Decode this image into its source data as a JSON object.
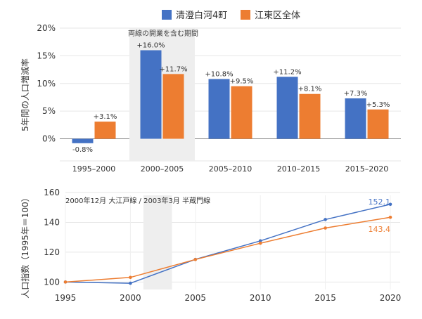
{
  "legend": [
    {
      "label": "清澄白河4町",
      "color": "#4472C4"
    },
    {
      "label": "江東区全体",
      "color": "#ED7D31"
    }
  ],
  "chart_data": [
    {
      "type": "bar",
      "ylabel": "5年間の人口増減率",
      "categories": [
        "1995–2000",
        "2000–2005",
        "2005–2010",
        "2010–2015",
        "2015–2020"
      ],
      "series": [
        {
          "name": "清澄白河4町",
          "values": [
            -0.8,
            16.0,
            10.8,
            11.2,
            7.3
          ],
          "labels": [
            "-0.8%",
            "+16.0%",
            "+10.8%",
            "+11.2%",
            "+7.3%"
          ]
        },
        {
          "name": "江東区全体",
          "values": [
            3.1,
            11.7,
            9.5,
            8.1,
            5.3
          ],
          "labels": [
            "+3.1%",
            "+11.7%",
            "+9.5%",
            "+8.1%",
            "+5.3%"
          ]
        }
      ],
      "ylim": [
        -4,
        20
      ],
      "yticks": [
        0,
        5,
        10,
        15,
        20
      ],
      "ytick_labels": [
        "0%",
        "5%",
        "10%",
        "15%",
        "20%"
      ],
      "shaded_category": "2000–2005",
      "annotation": "両線の開業を含む期間",
      "grid": true
    },
    {
      "type": "line",
      "ylabel": "人口指数（1995年＝100）",
      "x": [
        1995,
        2000,
        2005,
        2010,
        2015,
        2020
      ],
      "series": [
        {
          "name": "清澄白河4町",
          "values": [
            100,
            99.2,
            115.2,
            127.6,
            141.9,
            152.1
          ]
        },
        {
          "name": "江東区全体",
          "values": [
            100,
            103.1,
            115.1,
            126.0,
            136.2,
            143.4
          ]
        }
      ],
      "end_labels": [
        "152.1",
        "143.4"
      ],
      "ylim": [
        95,
        160
      ],
      "yticks": [
        100,
        120,
        140,
        160
      ],
      "xlim": [
        1995,
        2020
      ],
      "xticks": [
        1995,
        2000,
        2005,
        2010,
        2015,
        2020
      ],
      "shaded_span": [
        2001,
        2003.2
      ],
      "annotation": "2000年12月 大江戸線  /  2003年3月 半蔵門線",
      "grid": true
    }
  ]
}
